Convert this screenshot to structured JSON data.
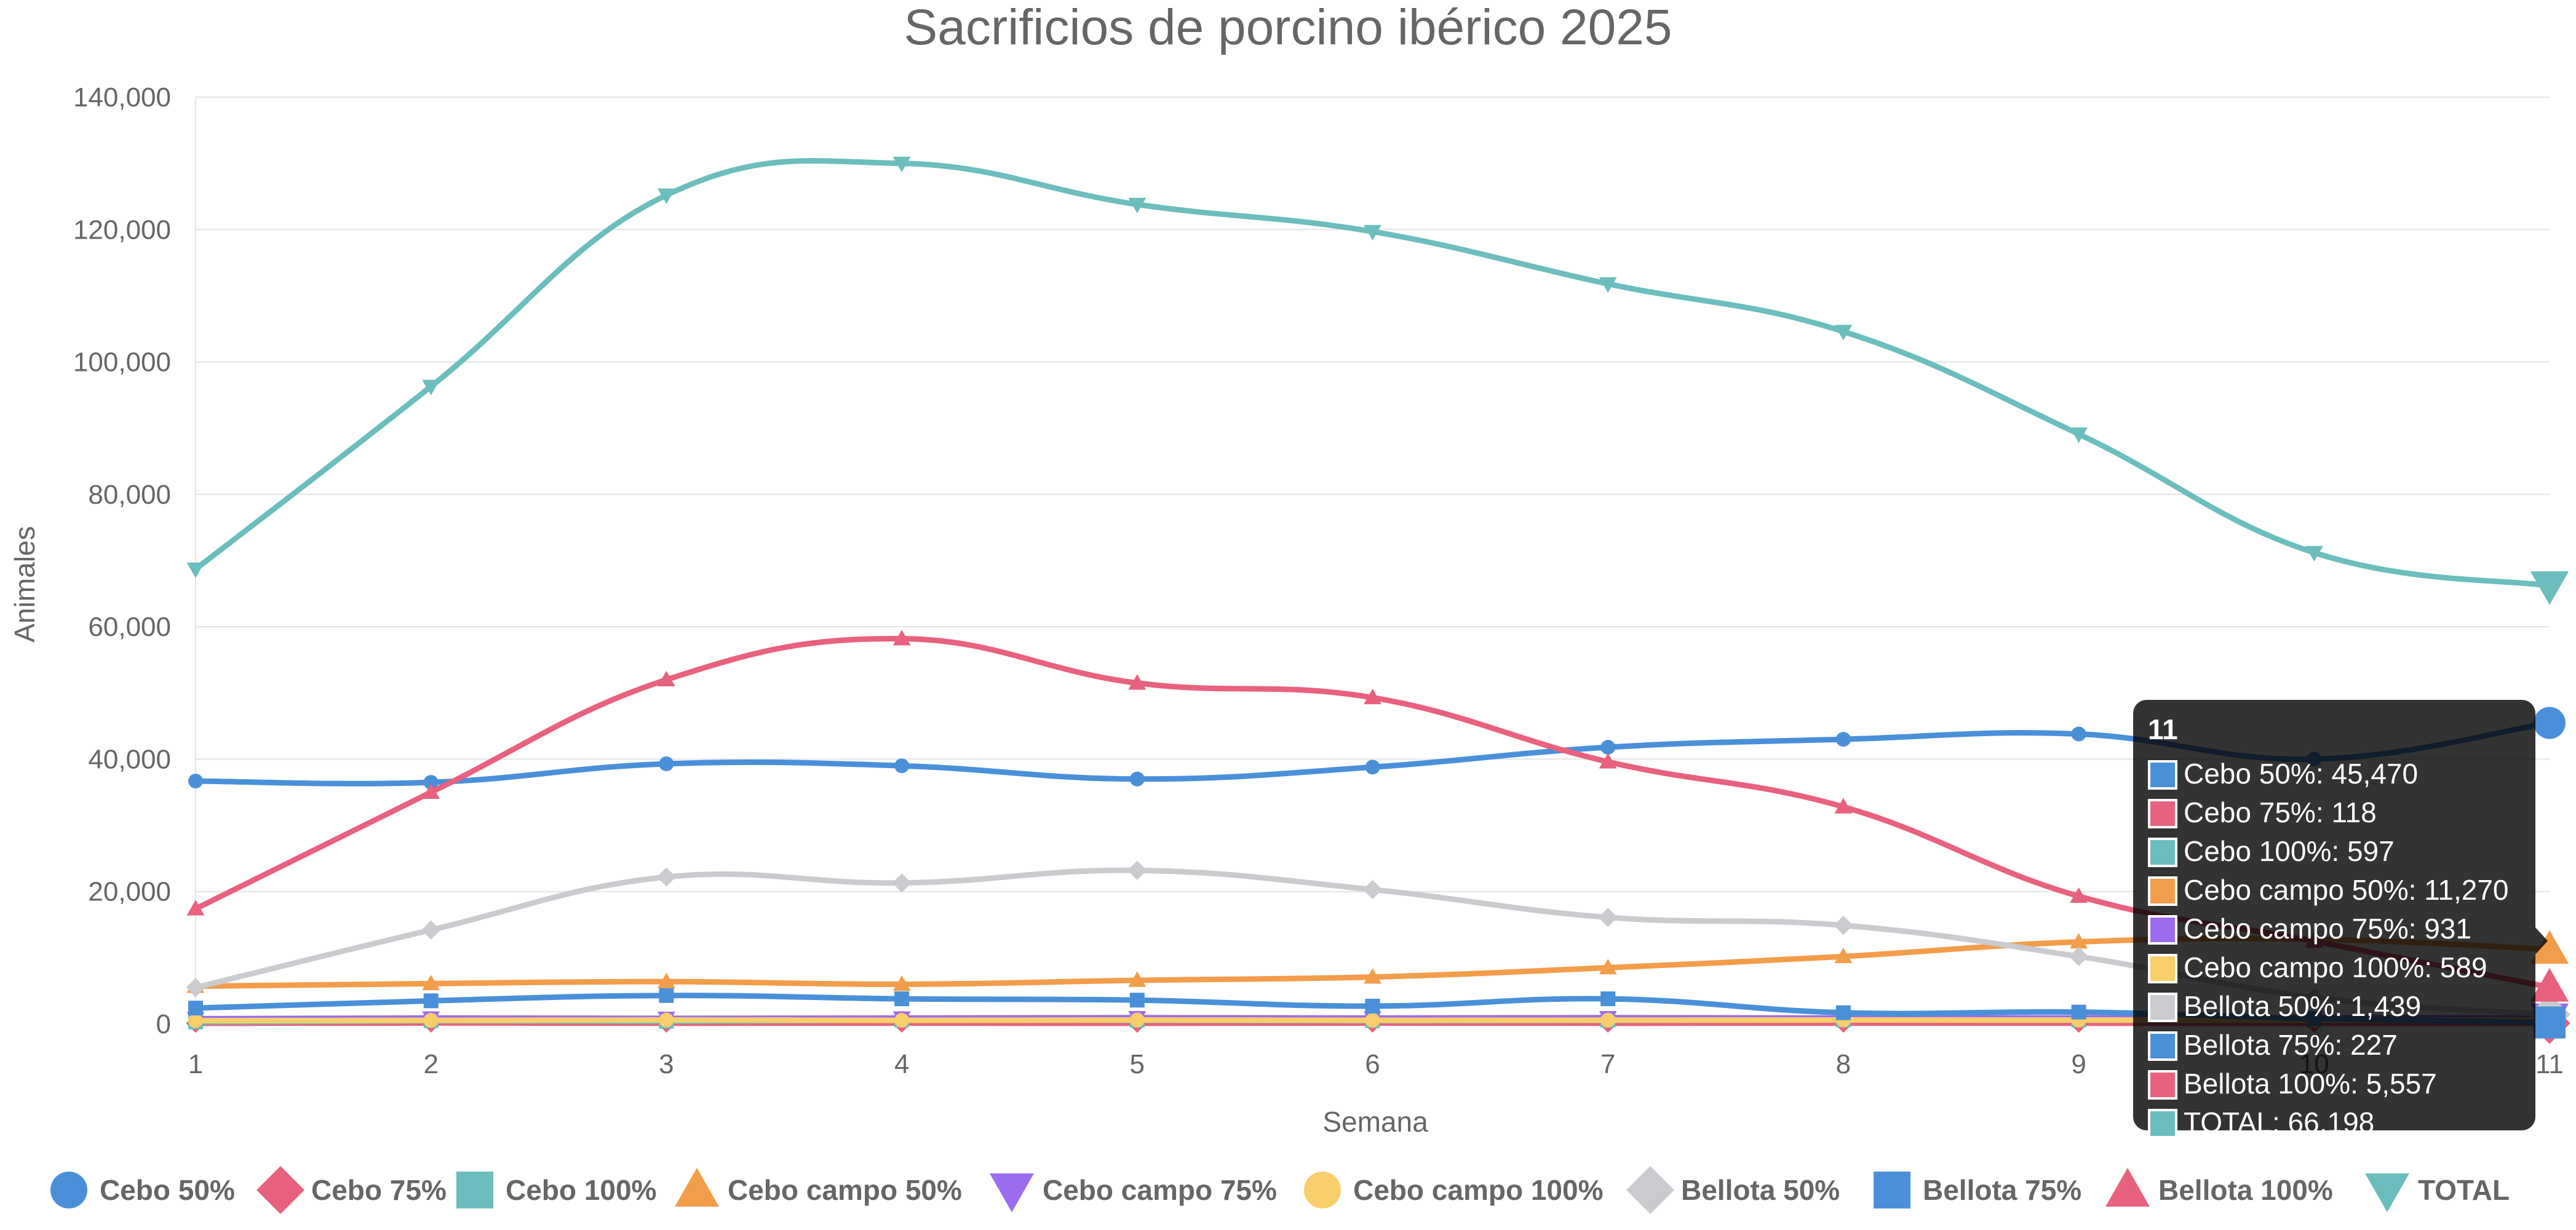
{
  "chart_data": {
    "type": "line",
    "title": "Sacrificios de porcino ibérico 2025",
    "xlabel": "Semana",
    "ylabel": "Animales",
    "x": [
      1,
      2,
      3,
      4,
      5,
      6,
      7,
      8,
      9,
      10,
      11
    ],
    "ylim": [
      0,
      140000
    ],
    "yticks": [
      0,
      20000,
      40000,
      60000,
      80000,
      100000,
      120000,
      140000
    ],
    "ytick_labels": [
      "0",
      "20,000",
      "40,000",
      "60,000",
      "80,000",
      "100,000",
      "120,000",
      "140,000"
    ],
    "grid": true,
    "legend_position": "bottom",
    "series": [
      {
        "name": "Cebo 50%",
        "color": "#4a90d9",
        "marker": "circle",
        "values": [
          36700,
          36500,
          39300,
          39000,
          37000,
          38800,
          41800,
          43000,
          43800,
          40000,
          45470
        ]
      },
      {
        "name": "Cebo 75%",
        "color": "#e8617e",
        "marker": "diamond",
        "values": [
          100,
          150,
          120,
          130,
          110,
          140,
          120,
          130,
          120,
          110,
          118
        ]
      },
      {
        "name": "Cebo 100%",
        "color": "#6cbdbd",
        "marker": "square",
        "values": [
          300,
          500,
          400,
          600,
          550,
          500,
          550,
          600,
          580,
          560,
          597
        ]
      },
      {
        "name": "Cebo campo 50%",
        "color": "#f29d4a",
        "marker": "triangle",
        "values": [
          5700,
          6100,
          6400,
          6000,
          6600,
          7100,
          8500,
          10200,
          12400,
          12800,
          11270
        ]
      },
      {
        "name": "Cebo campo 75%",
        "color": "#9b6cf0",
        "marker": "triangle-down",
        "values": [
          800,
          900,
          850,
          900,
          950,
          900,
          950,
          900,
          920,
          930,
          931
        ]
      },
      {
        "name": "Cebo campo 100%",
        "color": "#f8ce6a",
        "marker": "circle",
        "values": [
          500,
          550,
          600,
          550,
          600,
          560,
          580,
          600,
          590,
          580,
          589
        ]
      },
      {
        "name": "Bellota 50%",
        "color": "#c9cbcf",
        "marker": "diamond",
        "values": [
          5500,
          14200,
          22200,
          21300,
          23200,
          20300,
          16100,
          14900,
          10200,
          4000,
          1439
        ]
      },
      {
        "name": "Bellota 75%",
        "color": "#4a90d9",
        "marker": "square",
        "values": [
          2400,
          3500,
          4300,
          3800,
          3600,
          2700,
          3800,
          1700,
          1800,
          800,
          227
        ]
      },
      {
        "name": "Bellota 100%",
        "color": "#e8617e",
        "marker": "triangle",
        "values": [
          17400,
          35000,
          52000,
          58200,
          51500,
          49300,
          39600,
          32800,
          19300,
          12500,
          5557
        ]
      },
      {
        "name": "TOTAL",
        "color": "#6cbdbd",
        "marker": "triangle-down",
        "values": [
          68700,
          96300,
          125200,
          130000,
          123800,
          119700,
          111800,
          104600,
          89100,
          71200,
          66198
        ]
      }
    ]
  },
  "tooltip": {
    "title": "11",
    "lines": [
      "Cebo 50%: 45,470",
      "Cebo 75%: 118",
      "Cebo 100%: 597",
      "Cebo campo 50%: 11,270",
      "Cebo campo 75%: 931",
      "Cebo campo 100%: 589",
      "Bellota 50%: 1,439",
      "Bellota 75%: 227",
      "Bellota 100%: 5,557",
      "TOTAL: 66,198"
    ]
  }
}
